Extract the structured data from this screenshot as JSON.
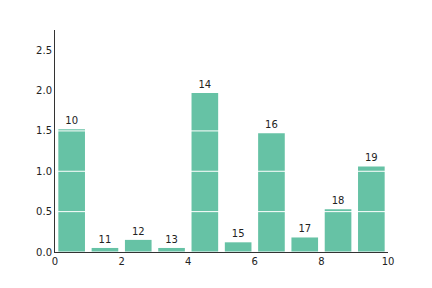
{
  "chart_data": {
    "type": "bar",
    "x": [
      0.5,
      1.5,
      2.5,
      3.5,
      4.5,
      5.5,
      6.5,
      7.5,
      8.5,
      9.5
    ],
    "values": [
      1.52,
      0.05,
      0.15,
      0.05,
      1.97,
      0.12,
      1.47,
      0.18,
      0.53,
      1.06
    ],
    "bar_labels": [
      "10",
      "11",
      "12",
      "13",
      "14",
      "15",
      "16",
      "17",
      "18",
      "19"
    ],
    "color": "#66c2a5",
    "xlim": [
      0,
      10
    ],
    "xticks": [
      0,
      2,
      4,
      6,
      8,
      10
    ],
    "ylim": [
      0,
      2.75
    ],
    "yticks": [
      {
        "value": 0,
        "label": "0.0"
      },
      0.5,
      {
        "value": 1,
        "label": "1.0"
      },
      1.5,
      {
        "value": 2,
        "label": "2.0"
      },
      2.5
    ],
    "grid": true
  }
}
